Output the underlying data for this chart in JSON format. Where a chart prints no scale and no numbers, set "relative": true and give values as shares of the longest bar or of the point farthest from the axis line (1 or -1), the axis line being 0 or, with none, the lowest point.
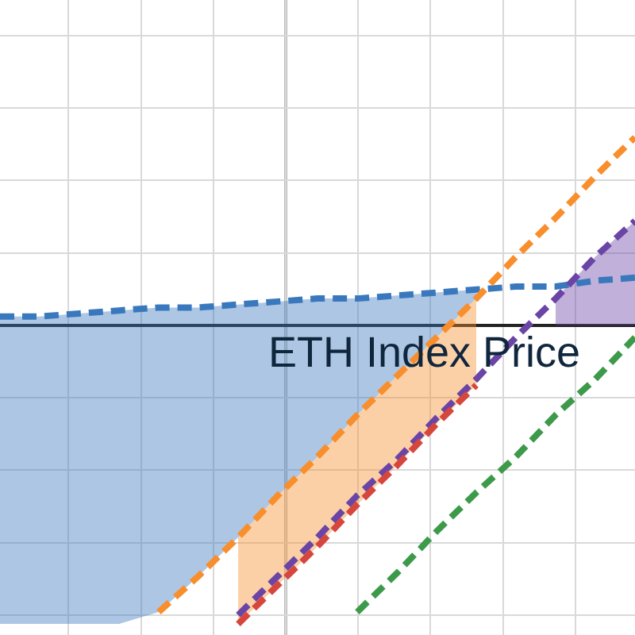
{
  "chart_data": {
    "type": "line",
    "relative": true,
    "xlabel": "ETH Index Price",
    "categories": [
      null,
      null,
      null,
      null,
      null,
      null,
      null,
      null,
      null,
      null,
      null,
      null,
      null,
      null,
      null,
      null,
      null
    ],
    "grid": true,
    "marker": "none",
    "line_style": "dashed",
    "series": [
      {
        "color": "#3a78bd",
        "values": [
          0.03,
          0.03,
          0.04,
          0.05,
          0.06,
          0.06,
          0.07,
          0.08,
          0.09,
          0.09,
          0.1,
          0.11,
          0.12,
          0.13,
          0.13,
          0.15,
          0.16
        ],
        "lower": [
          -1,
          -1,
          -1,
          -1,
          -0.96,
          -0.84,
          -0.71,
          -0.57,
          -0.44,
          -0.3,
          -0.17,
          -0.04,
          0.09,
          null,
          null,
          null,
          null
        ],
        "upper": [
          0.03,
          0.03,
          0.04,
          0.05,
          0.06,
          0.06,
          0.07,
          0.08,
          0.09,
          0.09,
          0.1,
          0.11,
          0.12,
          null,
          null,
          null,
          null
        ]
      },
      {
        "color": "#f98e2c",
        "values": [
          null,
          null,
          null,
          null,
          -0.96,
          -0.84,
          -0.71,
          -0.57,
          -0.44,
          -0.3,
          -0.17,
          -0.04,
          0.09,
          0.23,
          0.36,
          0.5,
          0.63
        ],
        "lower": [
          null,
          null,
          null,
          null,
          null,
          null,
          -1,
          -0.87,
          -0.74,
          -0.6,
          -0.47,
          -0.33,
          -0.2,
          null,
          null,
          null,
          null
        ],
        "upper": [
          null,
          null,
          null,
          null,
          null,
          null,
          -0.71,
          -0.57,
          -0.44,
          -0.3,
          -0.17,
          -0.04,
          0.09,
          null,
          null,
          null,
          null
        ]
      },
      {
        "color": "#6b45a6",
        "values": [
          null,
          null,
          null,
          null,
          null,
          null,
          -0.97,
          -0.84,
          -0.71,
          -0.57,
          -0.45,
          -0.31,
          -0.18,
          -0.04,
          0.09,
          0.23,
          0.35
        ],
        "lower": [
          null,
          null,
          null,
          null,
          null,
          null,
          null,
          null,
          null,
          null,
          null,
          null,
          null,
          null,
          0,
          0,
          0
        ],
        "upper": [
          null,
          null,
          null,
          null,
          null,
          null,
          null,
          null,
          null,
          null,
          null,
          null,
          null,
          null,
          0.09,
          0.23,
          0.35
        ]
      },
      {
        "color": "#d6463d",
        "values": [
          null,
          null,
          null,
          null,
          null,
          null,
          -1,
          -0.87,
          -0.74,
          -0.6,
          -0.47,
          -0.33,
          -0.2,
          null,
          null,
          null,
          null
        ]
      },
      {
        "color": "#3c9a4a",
        "values": [
          null,
          null,
          null,
          null,
          null,
          null,
          null,
          null,
          null,
          -0.96,
          -0.83,
          -0.69,
          -0.56,
          -0.44,
          -0.3,
          -0.18,
          -0.04
        ]
      }
    ]
  }
}
